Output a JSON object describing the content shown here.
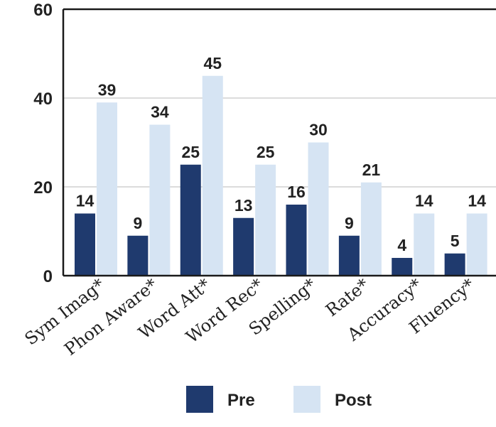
{
  "chart_data": {
    "type": "bar",
    "categories": [
      "Sym Imag*",
      "Phon Aware*",
      "Word Att*",
      "Word Rec*",
      "Spelling*",
      "Rate*",
      "Accuracy*",
      "Fluency*"
    ],
    "series": [
      {
        "name": "Pre",
        "values": [
          14,
          9,
          25,
          13,
          16,
          9,
          4,
          5
        ],
        "color": "#1f3a6e"
      },
      {
        "name": "Post",
        "values": [
          39,
          34,
          45,
          25,
          30,
          21,
          14,
          14
        ],
        "color": "#d6e4f3"
      }
    ],
    "ylim": [
      0,
      60
    ],
    "yticks": [
      0,
      20,
      40,
      60
    ],
    "grid": true,
    "legend_position": "bottom-center",
    "title": "",
    "xlabel": "",
    "ylabel": ""
  }
}
